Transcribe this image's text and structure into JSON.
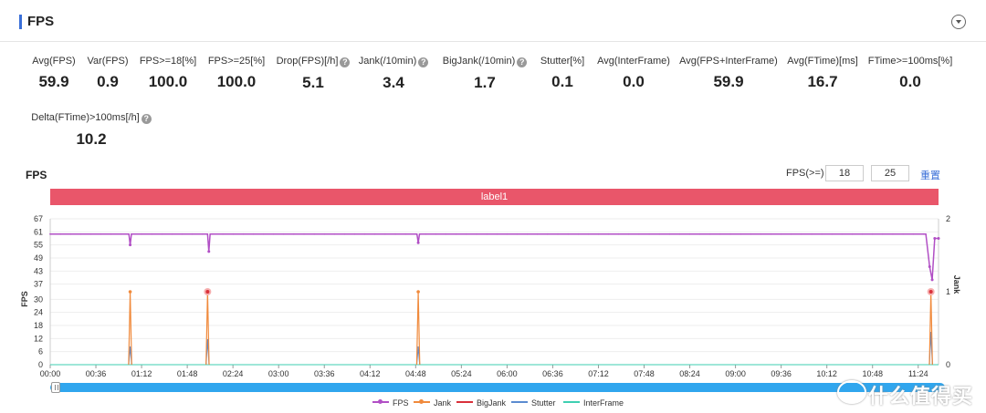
{
  "header": {
    "title": "FPS"
  },
  "metrics": [
    {
      "label": "Avg(FPS)",
      "value": "59.9"
    },
    {
      "label": "Var(FPS)",
      "value": "0.9"
    },
    {
      "label": "FPS>=18[%]",
      "value": "100.0"
    },
    {
      "label": "FPS>=25[%]",
      "value": "100.0"
    },
    {
      "label": "Drop(FPS)[/h]",
      "value": "5.1",
      "help": "?"
    },
    {
      "label": "Jank(/10min)",
      "value": "3.4",
      "help": "?"
    },
    {
      "label": "BigJank(/10min)",
      "value": "1.7",
      "help": "?"
    },
    {
      "label": "Stutter[%]",
      "value": "0.1"
    },
    {
      "label": "Avg(InterFrame)",
      "value": "0.0"
    },
    {
      "label": "Avg(FPS+InterFrame)",
      "value": "59.9"
    },
    {
      "label": "Avg(FTime)[ms]",
      "value": "16.7"
    },
    {
      "label": "FTime>=100ms[%]",
      "value": "0.0"
    },
    {
      "label": "Delta(FTime)>100ms[/h]",
      "value": "10.2",
      "help": "?"
    }
  ],
  "chart_header": {
    "title": "FPS",
    "threshold_label": "FPS(>=)",
    "threshold_1": "18",
    "threshold_2": "25",
    "reset_label": "重置"
  },
  "label_band": "label1",
  "colors": {
    "fps": "#b14fc5",
    "jank": "#f08a3c",
    "bigjank": "#d9303a",
    "stutter": "#5b8bd0",
    "interframe": "#3ecfb2",
    "accent": "#3a6fd8",
    "band": "#e9566a",
    "slider": "#30a6ee"
  },
  "watermark": {
    "text": "什么值得买",
    "icon": "badge-icon"
  },
  "chart_data": {
    "type": "line",
    "x_ticks": [
      "00:00",
      "00:36",
      "01:12",
      "01:48",
      "02:24",
      "03:00",
      "03:36",
      "04:12",
      "04:48",
      "05:24",
      "06:00",
      "06:36",
      "07:12",
      "07:48",
      "08:24",
      "09:00",
      "09:36",
      "10:12",
      "10:48",
      "11:24"
    ],
    "x_range_seconds": [
      0,
      700
    ],
    "ylabel": "FPS",
    "ylim": [
      0,
      67
    ],
    "y_ticks": [
      0,
      6,
      12,
      18,
      24,
      30,
      37,
      43,
      49,
      55,
      61,
      67
    ],
    "ylabel_right": "Jank",
    "ylim_right": [
      0,
      2
    ],
    "y_ticks_right": [
      0,
      1,
      2
    ],
    "series": [
      {
        "name": "FPS",
        "points": [
          [
            0,
            60
          ],
          [
            62,
            60
          ],
          [
            63,
            55
          ],
          [
            64,
            60
          ],
          [
            124,
            60
          ],
          [
            125,
            52
          ],
          [
            126,
            60
          ],
          [
            289,
            60
          ],
          [
            290,
            56
          ],
          [
            291,
            60
          ],
          [
            690,
            60
          ],
          [
            693,
            45
          ],
          [
            695,
            39
          ],
          [
            697,
            58
          ],
          [
            700,
            58
          ]
        ]
      },
      {
        "name": "Jank",
        "points": [
          [
            63,
            1
          ],
          [
            124,
            1
          ],
          [
            290,
            1
          ],
          [
            694,
            1
          ]
        ]
      },
      {
        "name": "BigJank",
        "points": [
          [
            124,
            1
          ],
          [
            694,
            1
          ]
        ]
      },
      {
        "name": "Stutter",
        "points": [
          [
            63,
            0.25
          ],
          [
            124,
            0.35
          ],
          [
            290,
            0.25
          ],
          [
            694,
            0.45
          ]
        ]
      },
      {
        "name": "InterFrame",
        "points": [
          [
            0,
            0
          ],
          [
            700,
            0
          ]
        ]
      }
    ],
    "legend": [
      "FPS",
      "Jank",
      "BigJank",
      "Stutter",
      "InterFrame"
    ],
    "legend_position": "bottom",
    "grid": true
  }
}
